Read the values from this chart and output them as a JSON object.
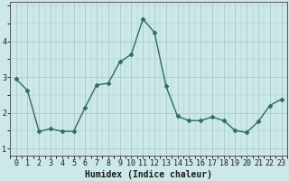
{
  "x": [
    0,
    1,
    2,
    3,
    4,
    5,
    6,
    7,
    8,
    9,
    10,
    11,
    12,
    13,
    14,
    15,
    16,
    17,
    18,
    19,
    20,
    21,
    22,
    23
  ],
  "y": [
    2.95,
    2.62,
    1.48,
    1.55,
    1.48,
    1.48,
    2.15,
    2.78,
    2.82,
    3.42,
    3.63,
    4.62,
    4.25,
    2.75,
    1.9,
    1.78,
    1.78,
    1.88,
    1.78,
    1.5,
    1.45,
    1.75,
    2.2,
    2.38
  ],
  "line_color": "#2d6b6b",
  "marker": "D",
  "markersize": 2.5,
  "linewidth": 1.0,
  "xlabel": "Humidex (Indice chaleur)",
  "bg_color": "#cde8e8",
  "grid_color_major": "#aacaca",
  "yticks": [
    1,
    2,
    3,
    4
  ],
  "xticks": [
    0,
    1,
    2,
    3,
    4,
    5,
    6,
    7,
    8,
    9,
    10,
    11,
    12,
    13,
    14,
    15,
    16,
    17,
    18,
    19,
    20,
    21,
    22,
    23
  ],
  "xlim": [
    -0.5,
    23.5
  ],
  "ylim": [
    0.8,
    5.1
  ],
  "xlabel_fontsize": 7,
  "tick_fontsize": 6,
  "ylabel_fontsize": 6
}
